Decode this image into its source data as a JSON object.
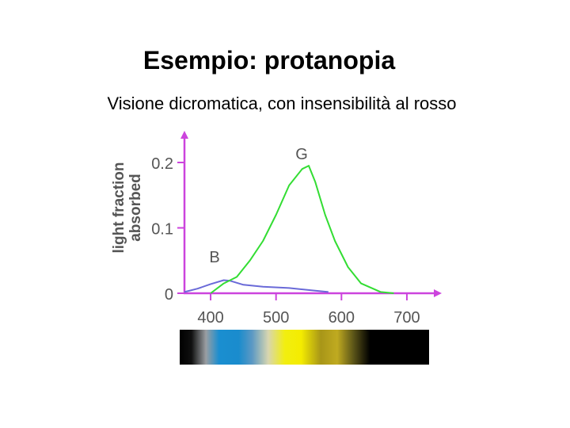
{
  "slide": {
    "title": "Esempio: protanopia",
    "subtitle": "Visione dicromatica, con insensibilità al rosso"
  },
  "chart_data": {
    "type": "line",
    "ylabel": "light fraction absorbed",
    "xlabel": "",
    "xlim": [
      360,
      740
    ],
    "ylim": [
      0,
      0.24
    ],
    "x_ticks": [
      "400",
      "500",
      "600",
      "700"
    ],
    "y_ticks": [
      "0",
      "0.1",
      "0.2"
    ],
    "grid": false,
    "series": [
      {
        "name": "B",
        "color": "#6a6ad8",
        "points": [
          [
            360,
            0.002
          ],
          [
            380,
            0.007
          ],
          [
            400,
            0.014
          ],
          [
            420,
            0.02
          ],
          [
            430,
            0.019
          ],
          [
            450,
            0.013
          ],
          [
            480,
            0.01
          ],
          [
            520,
            0.008
          ],
          [
            560,
            0.004
          ],
          [
            580,
            0.002
          ]
        ]
      },
      {
        "name": "G",
        "color": "#33dd33",
        "points": [
          [
            400,
            0.0
          ],
          [
            420,
            0.015
          ],
          [
            440,
            0.025
          ],
          [
            460,
            0.05
          ],
          [
            480,
            0.08
          ],
          [
            500,
            0.12
          ],
          [
            520,
            0.165
          ],
          [
            540,
            0.19
          ],
          [
            550,
            0.195
          ],
          [
            560,
            0.17
          ],
          [
            575,
            0.12
          ],
          [
            590,
            0.08
          ],
          [
            610,
            0.04
          ],
          [
            630,
            0.015
          ],
          [
            660,
            0.002
          ],
          [
            680,
            0.0
          ]
        ]
      }
    ],
    "spectrum_stops": [
      {
        "nm": 360,
        "color": "#000000"
      },
      {
        "nm": 378,
        "color": "#101010"
      },
      {
        "nm": 400,
        "color": "#9a9ea2"
      },
      {
        "nm": 420,
        "color": "#1a8ed0"
      },
      {
        "nm": 450,
        "color": "#1a8ccd"
      },
      {
        "nm": 470,
        "color": "#5a98c4"
      },
      {
        "nm": 495,
        "color": "#d8d6b0"
      },
      {
        "nm": 520,
        "color": "#f2ee10"
      },
      {
        "nm": 545,
        "color": "#f4ec00"
      },
      {
        "nm": 575,
        "color": "#a89618"
      },
      {
        "nm": 600,
        "color": "#c0aa20"
      },
      {
        "nm": 625,
        "color": "#5a5418"
      },
      {
        "nm": 650,
        "color": "#000000"
      },
      {
        "nm": 740,
        "color": "#000000"
      }
    ],
    "colors": {
      "axis": "#cc44dd",
      "text": "#555555"
    }
  }
}
